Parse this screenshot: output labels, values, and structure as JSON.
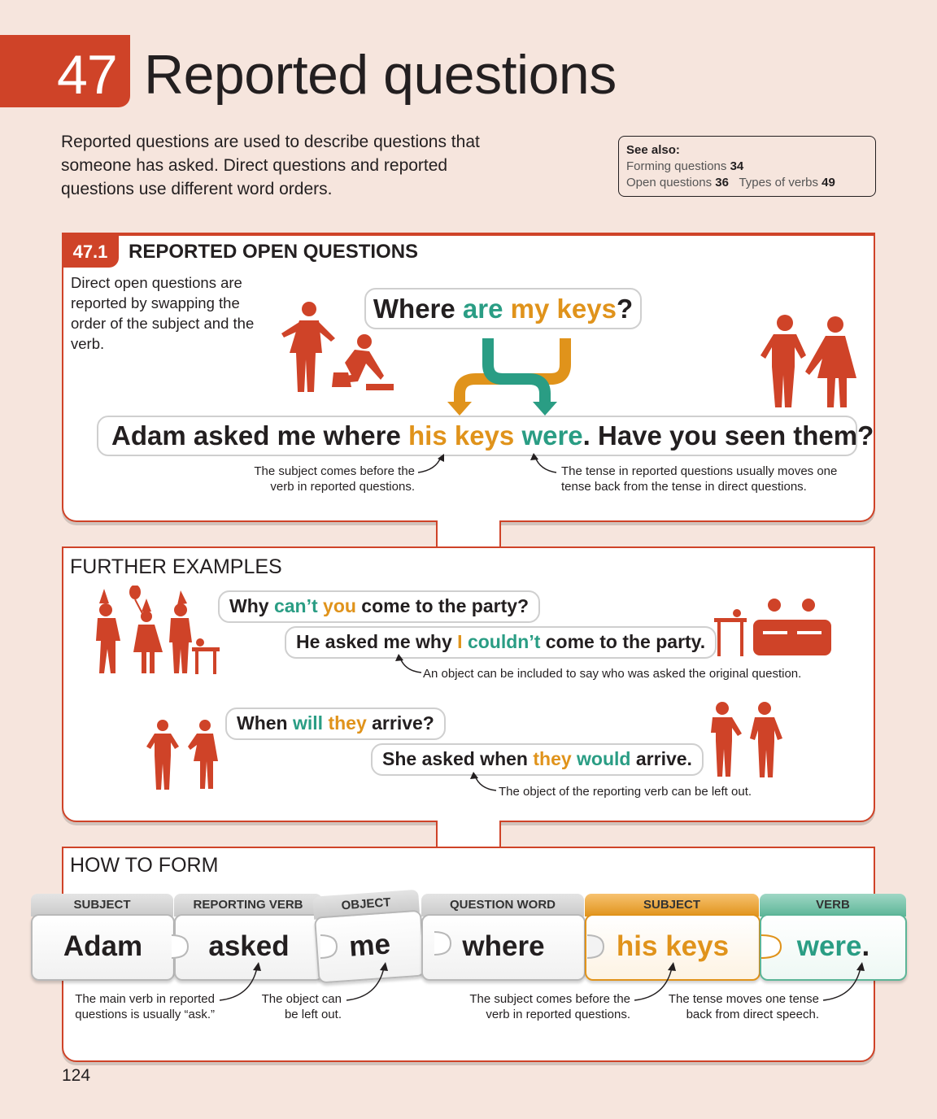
{
  "header": {
    "chapter_number": "47",
    "title": "Reported questions",
    "intro": "Reported questions are used to describe questions that someone has asked. Direct questions and reported questions use different word orders."
  },
  "see_also": {
    "title": "See also:",
    "line1_label": "Forming questions ",
    "line1_num": "34",
    "line2_label1": "Open questions ",
    "line2_num1": "36",
    "line2_label2": "Types of verbs ",
    "line2_num2": "49"
  },
  "section1": {
    "number": "47.1",
    "title": "REPORTED OPEN QUESTIONS",
    "description": "Direct open questions are reported by swapping the order of the subject and the verb.",
    "question": {
      "p1": "Where ",
      "p2": "are",
      "p3": " ",
      "p4": "my keys",
      "p5": "?"
    },
    "answer": {
      "p1": "Adam asked me where ",
      "p2": "his keys",
      "p3": " ",
      "p4": "were",
      "p5": ". Have you seen them?"
    },
    "note_left": "The subject comes before the\nverb in reported questions.",
    "note_right": "The tense in reported questions usually moves one\ntense back from the tense in direct questions."
  },
  "further": {
    "title": "FURTHER EXAMPLES",
    "ex1_q": {
      "p1": "Why ",
      "p2": "can’t",
      "p3": " ",
      "p4": "you",
      "p5": " come to the party?"
    },
    "ex1_a": {
      "p1": "He asked me why ",
      "p2": "I",
      "p3": " ",
      "p4": "couldn’t",
      "p5": " come to the party."
    },
    "ex1_note": "An object can be included to say who was asked the original question.",
    "ex2_q": {
      "p1": "When ",
      "p2": "will",
      "p3": " ",
      "p4": "they",
      "p5": " arrive?"
    },
    "ex2_a": {
      "p1": "She asked when ",
      "p2": "they",
      "p3": " ",
      "p4": "would",
      "p5": " arrive."
    },
    "ex2_note": "The object of the reporting verb can be left out."
  },
  "how_to_form": {
    "title": "HOW TO FORM",
    "pieces": [
      {
        "tab": "SUBJECT",
        "word": "Adam"
      },
      {
        "tab": "REPORTING VERB",
        "word": "asked"
      },
      {
        "tab": "OBJECT",
        "word": "me"
      },
      {
        "tab": "QUESTION WORD",
        "word": "where"
      },
      {
        "tab": "SUBJECT",
        "word": "his keys"
      },
      {
        "tab": "VERB",
        "word": "were",
        "punct": "."
      }
    ],
    "notes": [
      "The main verb in reported\nquestions is usually “ask.”",
      "The object can\nbe left out.",
      "The subject comes before the\nverb in reported questions.",
      "The tense moves one tense\nback from direct speech."
    ]
  },
  "page_number": "124",
  "colors": {
    "accent": "#cf4328",
    "teal": "#2a9d84",
    "orange": "#e0931b",
    "background": "#f6e5dd"
  }
}
